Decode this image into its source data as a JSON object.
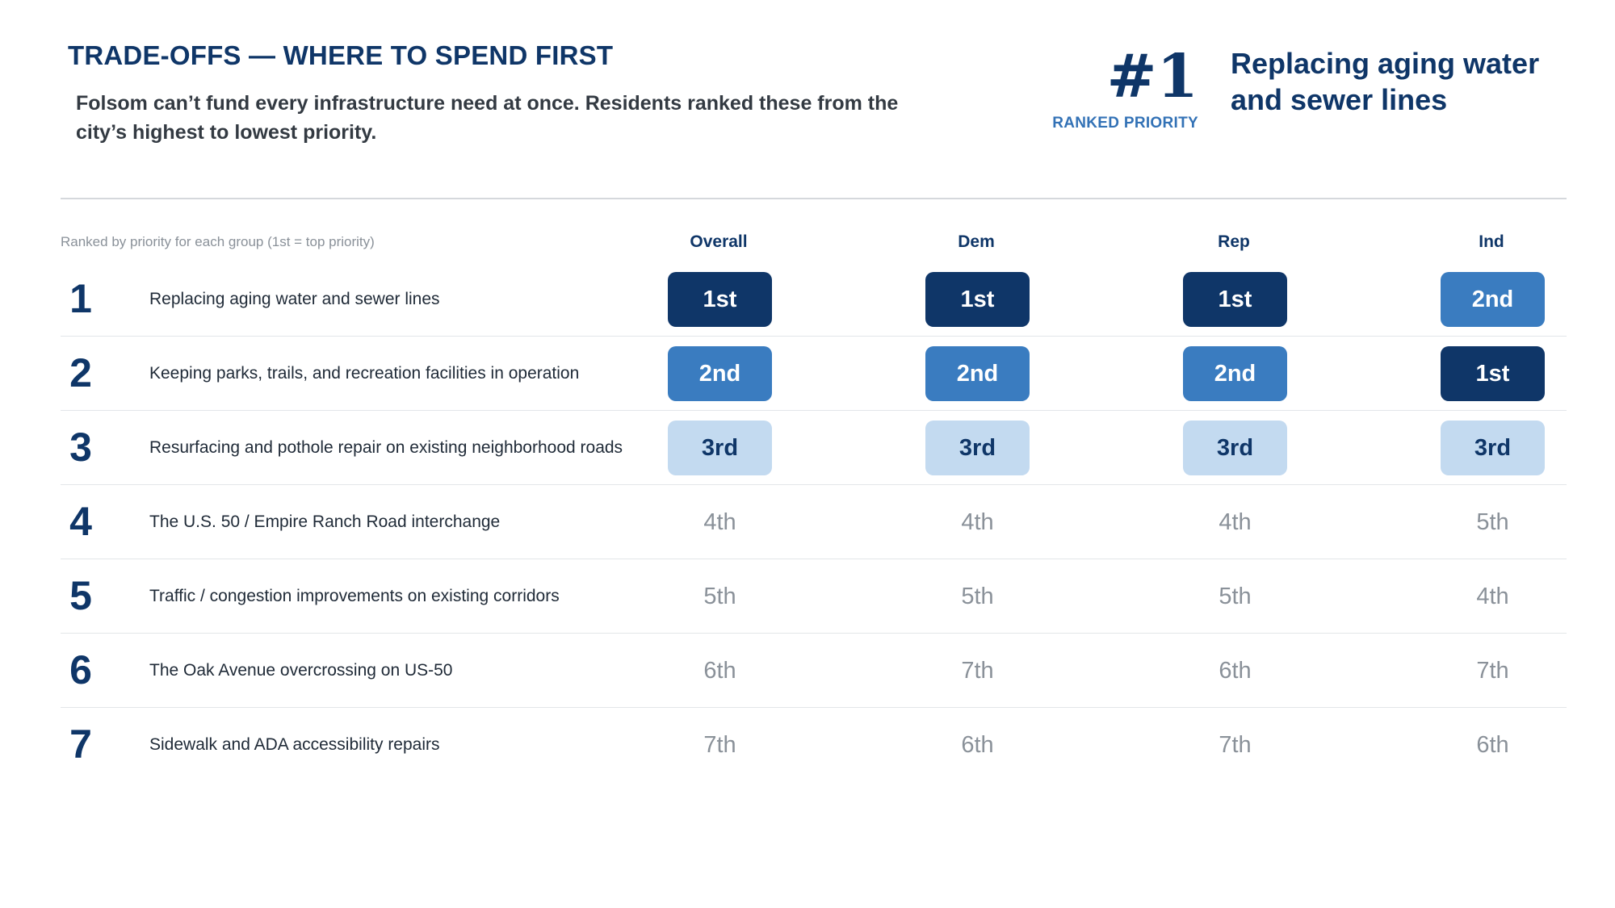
{
  "header": {
    "title": "TRADE-OFFS — WHERE TO SPEND FIRST",
    "subtitle": "Folsom can’t fund every infrastructure need at once. Residents ranked these from the city’s highest to lowest priority."
  },
  "highlight": {
    "number": "#1",
    "label": "RANKED PRIORITY",
    "text": "Replacing aging water and sewer lines"
  },
  "table": {
    "note": "Ranked by priority for each group (1st = top priority)",
    "columns": [
      "Overall",
      "Dem",
      "Rep",
      "Ind"
    ],
    "rows": [
      {
        "rank": "1",
        "label": "Replacing aging water and sewer lines",
        "values": [
          "1st",
          "1st",
          "1st",
          "2nd"
        ]
      },
      {
        "rank": "2",
        "label": "Keeping parks, trails, and recreation facilities in operation",
        "values": [
          "2nd",
          "2nd",
          "2nd",
          "1st"
        ]
      },
      {
        "rank": "3",
        "label": "Resurfacing and pothole repair on existing neighborhood roads",
        "values": [
          "3rd",
          "3rd",
          "3rd",
          "3rd"
        ]
      },
      {
        "rank": "4",
        "label": "The U.S. 50 / Empire Ranch Road interchange",
        "values": [
          "4th",
          "4th",
          "4th",
          "5th"
        ]
      },
      {
        "rank": "5",
        "label": "Traffic / congestion improvements on existing corridors",
        "values": [
          "5th",
          "5th",
          "5th",
          "4th"
        ]
      },
      {
        "rank": "6",
        "label": "The Oak Avenue overcrossing on US-50",
        "values": [
          "6th",
          "7th",
          "6th",
          "7th"
        ]
      },
      {
        "rank": "7",
        "label": "Sidewalk and ADA accessibility repairs",
        "values": [
          "7th",
          "6th",
          "7th",
          "6th"
        ]
      }
    ]
  },
  "colors": {
    "first": "#0f3668",
    "second": "#3a7cc0",
    "third": "#c3daf0",
    "other_text": "#8a9199"
  },
  "chart_data": {
    "type": "table",
    "title": "TRADE-OFFS — WHERE TO SPEND FIRST",
    "subtitle": "Folsom can’t fund every infrastructure need at once. Residents ranked these from the city’s highest to lowest priority.",
    "columns": [
      "Overall",
      "Dem",
      "Rep",
      "Ind"
    ],
    "categories": [
      "Replacing aging water and sewer lines",
      "Keeping parks, trails, and recreation facilities in operation",
      "Resurfacing and pothole repair on existing neighborhood roads",
      "The U.S. 50 / Empire Ranch Road interchange",
      "Traffic / congestion improvements on existing corridors",
      "The Oak Avenue overcrossing on US-50",
      "Sidewalk and ADA accessibility repairs"
    ],
    "series": [
      {
        "name": "Overall",
        "values": [
          1,
          2,
          3,
          4,
          5,
          6,
          7
        ]
      },
      {
        "name": "Dem",
        "values": [
          1,
          2,
          3,
          4,
          5,
          7,
          6
        ]
      },
      {
        "name": "Rep",
        "values": [
          1,
          2,
          3,
          4,
          5,
          6,
          7
        ]
      },
      {
        "name": "Ind",
        "values": [
          2,
          1,
          3,
          5,
          4,
          7,
          6
        ]
      }
    ]
  }
}
